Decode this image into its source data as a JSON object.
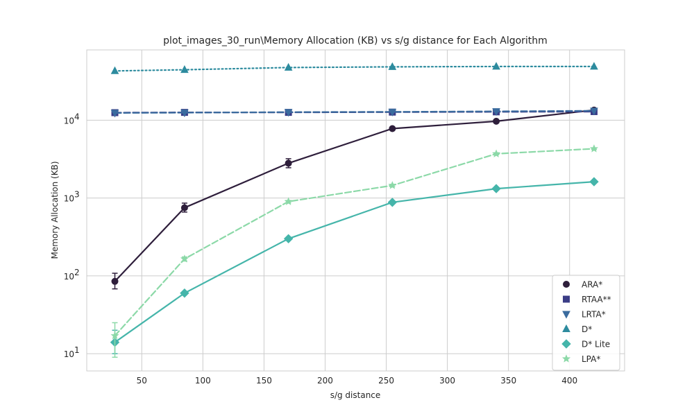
{
  "chart_data": {
    "type": "line",
    "title": "plot_images_30_run\\Memory Allocation (KB) vs s/g distance for Each Algorithm",
    "xlabel": "s/g distance",
    "ylabel": "Memory Allocation (KB)",
    "xlim": [
      5,
      445
    ],
    "ylim": [
      6,
      80000
    ],
    "yscale": "log",
    "grid": true,
    "legend_position": "lower-right",
    "x_ticks": [
      50,
      100,
      150,
      200,
      250,
      300,
      350,
      400
    ],
    "x_tick_labels": [
      "50",
      "100",
      "150",
      "200",
      "250",
      "300",
      "350",
      "400"
    ],
    "y_ticks": [
      10,
      100,
      1000,
      10000
    ],
    "y_tick_labels": [
      {
        "base": "10",
        "exp": "1"
      },
      {
        "base": "10",
        "exp": "2"
      },
      {
        "base": "10",
        "exp": "3"
      },
      {
        "base": "10",
        "exp": "4"
      }
    ],
    "x": [
      28,
      85,
      170,
      255,
      340,
      420
    ],
    "series": [
      {
        "name": "ARA*",
        "color": "#2e1e3b",
        "marker": "circle",
        "dash": "solid",
        "values": [
          85,
          750,
          2800,
          7800,
          9700,
          13500
        ],
        "err_low": [
          68,
          660,
          2450,
          7500,
          9300,
          13000
        ],
        "err_high": [
          108,
          860,
          3200,
          8100,
          10100,
          14000
        ]
      },
      {
        "name": "RTAA**",
        "color": "#3b3d86",
        "marker": "square",
        "dash": "dashed",
        "values": [
          12500,
          12600,
          12600,
          12700,
          12800,
          12900
        ]
      },
      {
        "name": "LRTA*",
        "color": "#3a6b9e",
        "marker": "triangle-down",
        "dash": "dashed",
        "values": [
          12400,
          12500,
          12700,
          12800,
          13000,
          13200
        ]
      },
      {
        "name": "D*",
        "color": "#2d8b9e",
        "marker": "triangle-up",
        "dash": "dotted",
        "values": [
          43000,
          44500,
          47500,
          48500,
          49000,
          49000
        ]
      },
      {
        "name": "D* Lite",
        "color": "#45b5aa",
        "marker": "diamond",
        "dash": "solid",
        "values": [
          14,
          60,
          300,
          880,
          1320,
          1620
        ],
        "err_low": [
          10,
          58,
          290,
          870,
          1300,
          1600
        ],
        "err_high": [
          20,
          62,
          310,
          890,
          1340,
          1640
        ]
      },
      {
        "name": "LPA*",
        "color": "#8cd9a8",
        "marker": "star",
        "dash": "dashed",
        "values": [
          17,
          165,
          900,
          1450,
          3700,
          4300
        ],
        "err_low": [
          9,
          155,
          870,
          1400,
          3600,
          4200
        ],
        "err_high": [
          25,
          175,
          930,
          1500,
          3800,
          4400
        ]
      }
    ]
  }
}
